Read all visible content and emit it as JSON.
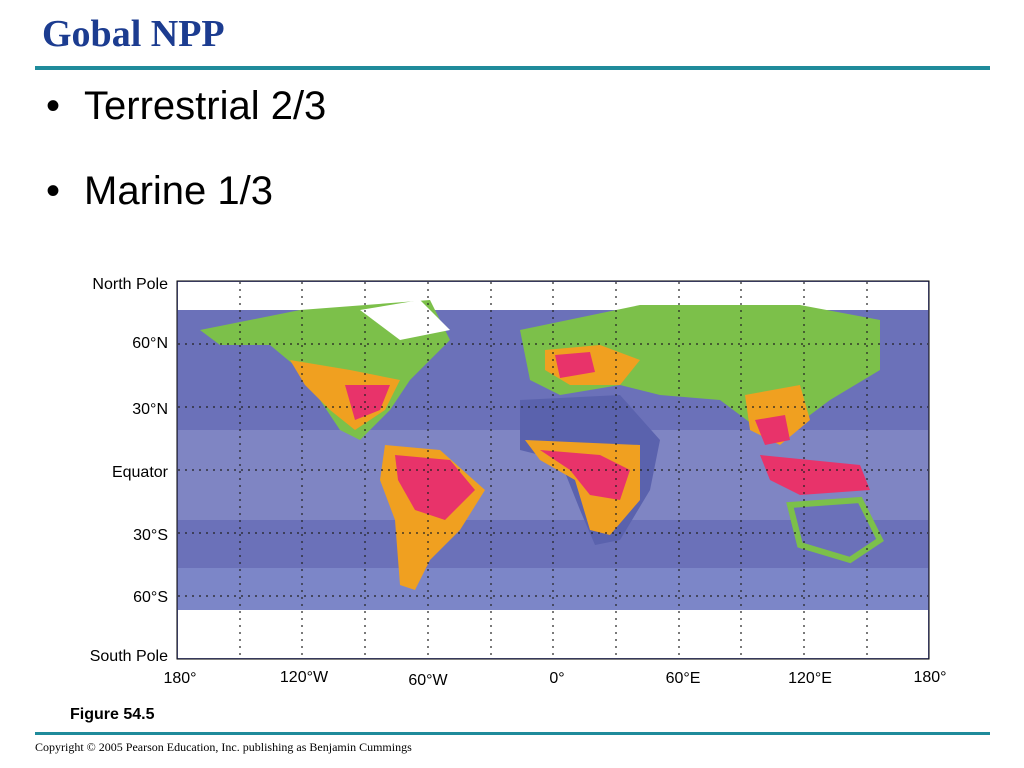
{
  "header": {
    "title": "Gobal NPP"
  },
  "bullets": [
    "Terrestrial 2/3",
    "Marine 1/3"
  ],
  "figure": {
    "latitude_labels": [
      "North Pole",
      "60°N",
      "30°N",
      "Equator",
      "30°S",
      "60°S",
      "South Pole"
    ],
    "longitude_labels": [
      "180°",
      "120°W",
      "60°W",
      "0°",
      "60°E",
      "120°E",
      "180°"
    ],
    "caption": "Figure 54.5"
  },
  "footer": {
    "copyright": "Copyright © 2005 Pearson Education, Inc. publishing as Benjamin Cummings"
  }
}
